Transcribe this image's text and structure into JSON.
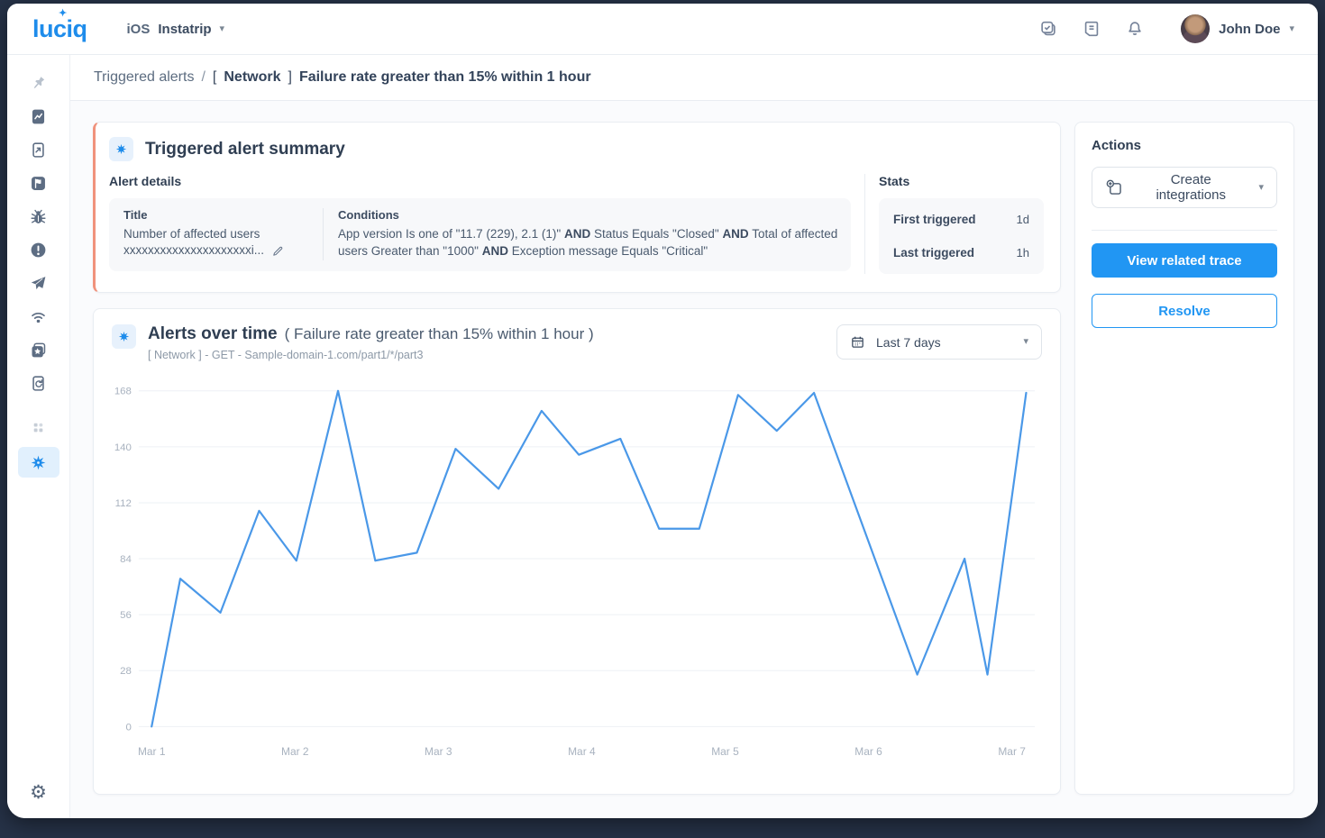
{
  "app": {
    "logo_text": "luciq",
    "logo_star": "✦",
    "platform": "iOS",
    "app_name": "Instatrip",
    "user_name": "John Doe"
  },
  "nav_icons": [
    "tasks",
    "notes",
    "notifications"
  ],
  "sidebar": {
    "icons": [
      "pin",
      "phone-chart",
      "phone-arrow",
      "flag",
      "bug",
      "alert-circle",
      "paper-plane",
      "wifi",
      "star-copy",
      "phone-refresh",
      "grid-dots",
      "spark-active",
      "gear"
    ],
    "active_item": "alerts"
  },
  "breadcrumb": {
    "parent": "Triggered alerts",
    "separator": "/",
    "bracket_open": "[",
    "tag": "Network",
    "bracket_close": "]",
    "title": "Failure rate greater than 15% within 1 hour"
  },
  "summary_card": {
    "heading": "Triggered alert summary",
    "details_heading": "Alert details",
    "title_label": "Title",
    "title_line1": "Number of affected users",
    "title_line2": "xxxxxxxxxxxxxxxxxxxxxi...",
    "conditions_label": "Conditions",
    "conditions_segments": [
      {
        "text": "App version Is one of \"11.7 (229), 2.1 (1)\"",
        "bold": false
      },
      {
        "text": "AND",
        "bold": true
      },
      {
        "text": "Status Equals \"Closed\"",
        "bold": false
      },
      {
        "text": "AND",
        "bold": true
      },
      {
        "text": "Total of affected users Greater than \"1000\"",
        "bold": false
      },
      {
        "text": "AND",
        "bold": true
      },
      {
        "text": "Exception message Equals \"Critical\"",
        "bold": false
      }
    ],
    "stats_heading": "Stats",
    "stats": [
      {
        "label": "First triggered",
        "value": "1d"
      },
      {
        "label": "Last triggered",
        "value": "1h"
      }
    ]
  },
  "chart_card": {
    "heading": "Alerts over time",
    "heading_suffix": "( Failure rate greater than 15% within 1 hour )",
    "source_line": "[ Network ] - GET - Sample-domain-1.com/part1/*/part3",
    "range_label": "Last 7 days"
  },
  "chart_data": {
    "type": "line",
    "title": "Alerts over time ( Failure rate greater than 15% within 1 hour )",
    "x_ticks": [
      "Mar 1",
      "Mar 2",
      "Mar 3",
      "Mar 4",
      "Mar 5",
      "Mar 6",
      "Mar 7"
    ],
    "y_ticks": [
      0,
      28,
      56,
      84,
      112,
      140,
      168
    ],
    "ylim": [
      0,
      168
    ],
    "xlim_days": [
      -0.09,
      6.16
    ],
    "grid": "horizontal",
    "legend": "none",
    "line_color": "#4a98e8",
    "points_days_value": [
      [
        0,
        0
      ],
      [
        0.2,
        74
      ],
      [
        0.48,
        57
      ],
      [
        0.75,
        108
      ],
      [
        1.01,
        83
      ],
      [
        1.3,
        168
      ],
      [
        1.56,
        83
      ],
      [
        1.85,
        87
      ],
      [
        2.12,
        139
      ],
      [
        2.42,
        119
      ],
      [
        2.72,
        158
      ],
      [
        2.98,
        136
      ],
      [
        3.27,
        144
      ],
      [
        3.54,
        99
      ],
      [
        3.82,
        99
      ],
      [
        4.09,
        166
      ],
      [
        4.36,
        148
      ],
      [
        4.62,
        167
      ],
      [
        5.34,
        26
      ],
      [
        5.67,
        84
      ],
      [
        5.83,
        26
      ],
      [
        6.1,
        167
      ]
    ]
  },
  "actions": {
    "heading": "Actions",
    "create_integrations_label": "Create integrations",
    "view_related_trace_label": "View related trace",
    "resolve_label": "Resolve"
  },
  "colors": {
    "accent_blue": "#2196f3",
    "logo_blue": "#1e8ceb",
    "alert_accent": "#f0927c",
    "chart_line": "#4a98e8",
    "active_item_bg": "#e1f0fd"
  }
}
